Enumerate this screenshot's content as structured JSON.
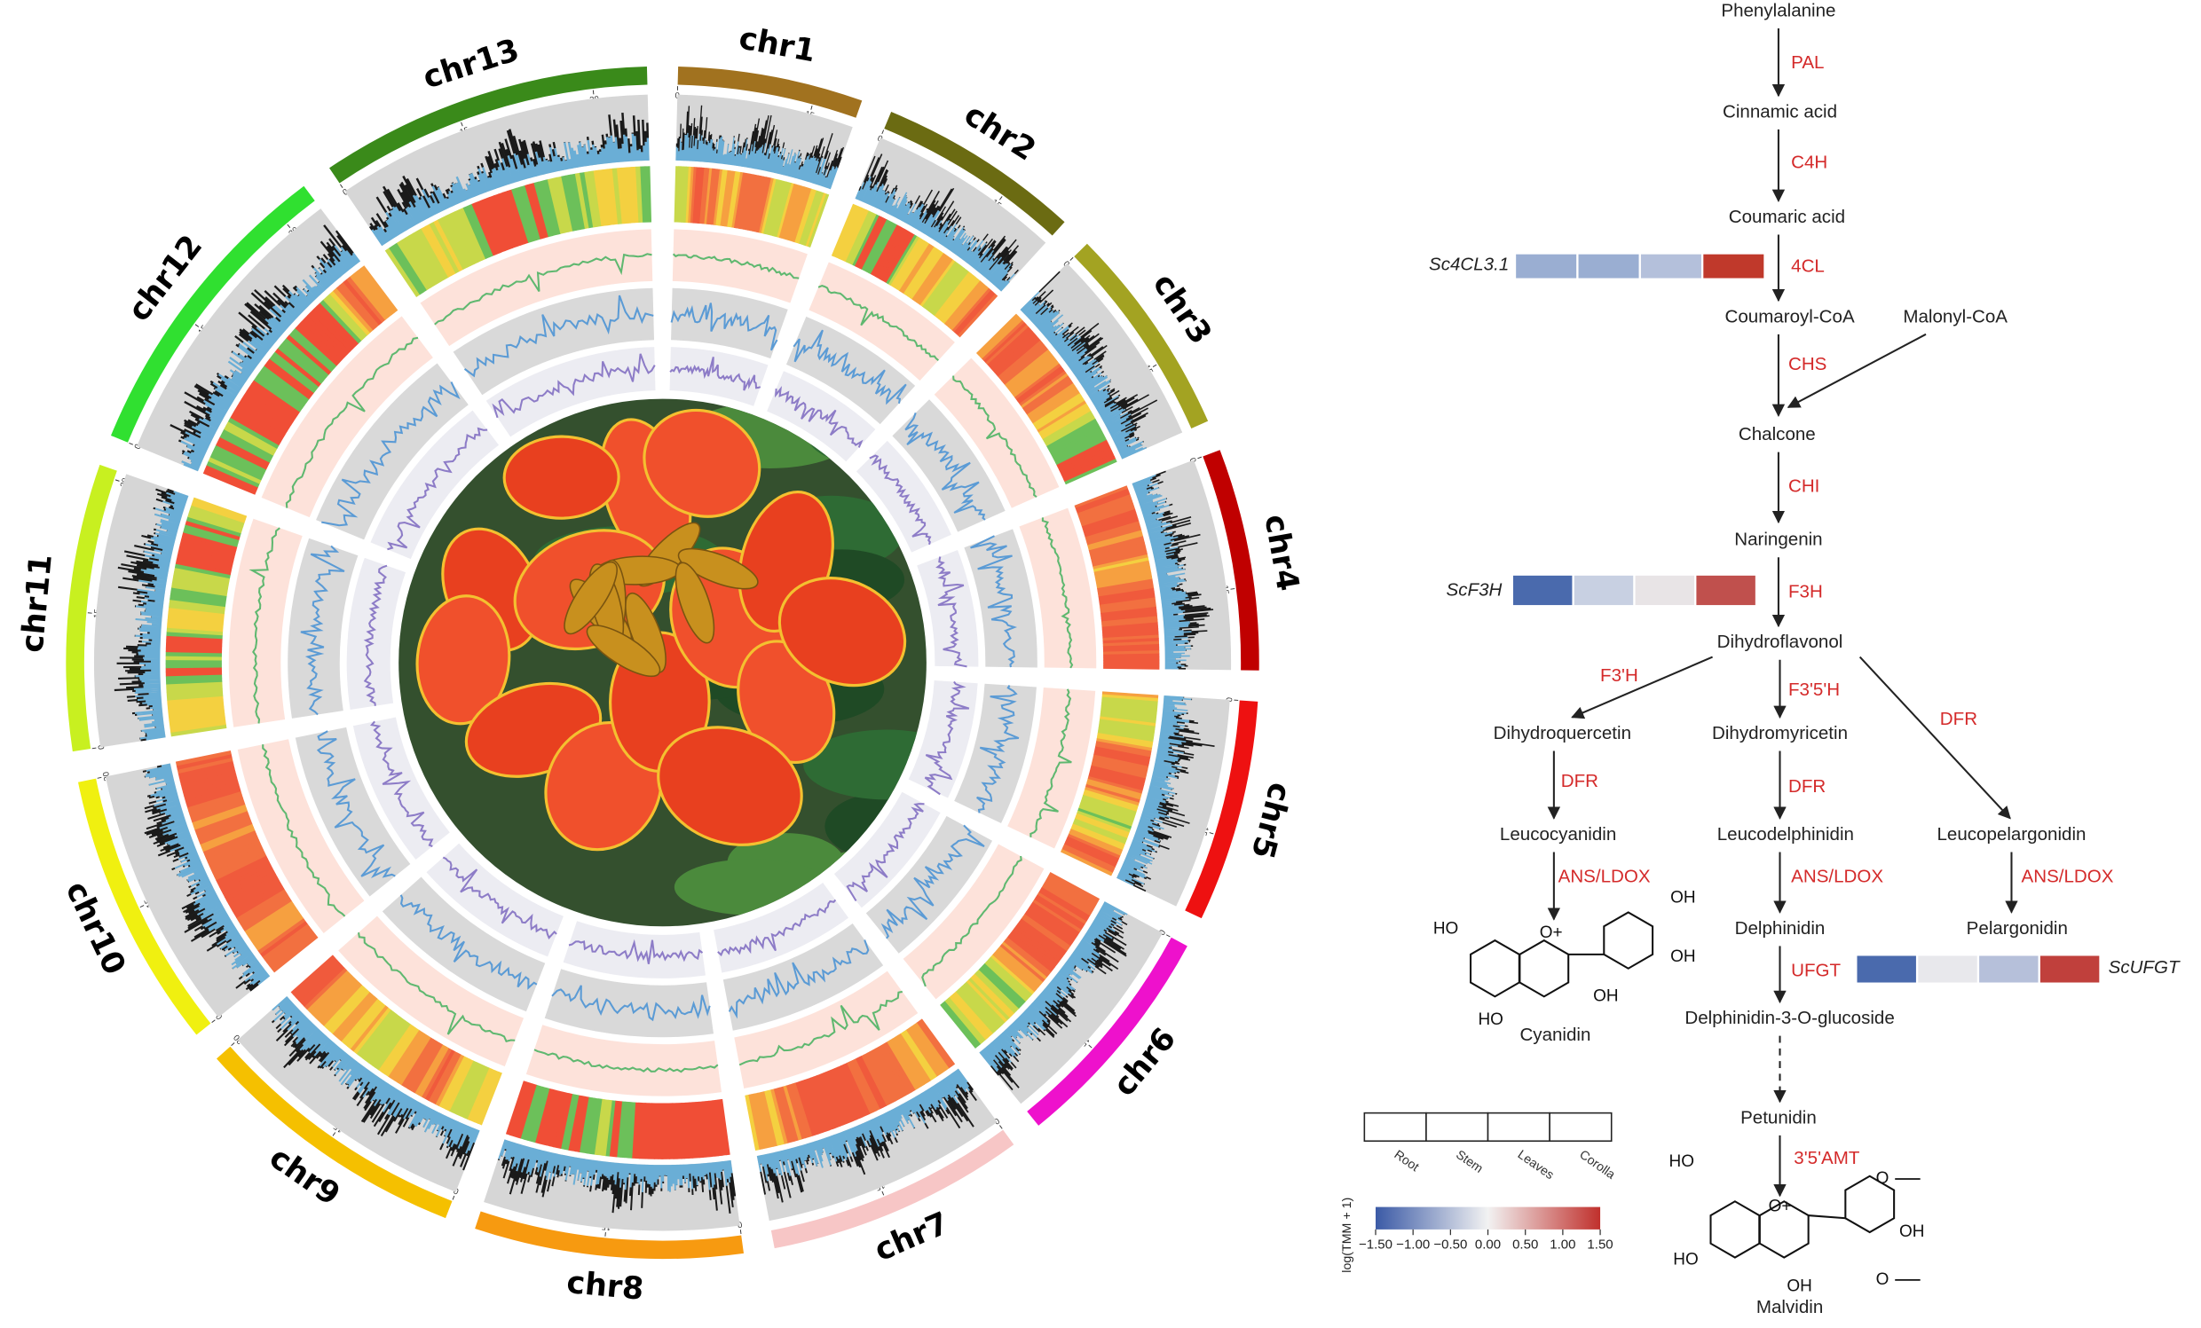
{
  "circos": {
    "chromosomes": [
      {
        "name": "chr1",
        "length": 20,
        "color": "#a1721f",
        "ticks": [
          0,
          15
        ]
      },
      {
        "name": "chr2",
        "length": 22,
        "color": "#6b6b12",
        "ticks": [
          0,
          15
        ]
      },
      {
        "name": "chr3",
        "length": 23,
        "color": "#a3a322",
        "ticks": [
          0,
          15
        ]
      },
      {
        "name": "chr4",
        "length": 24,
        "color": "#c00000",
        "ticks": [
          0,
          15
        ]
      },
      {
        "name": "chr5",
        "length": 24,
        "color": "#ee1111",
        "ticks": [
          0,
          15
        ]
      },
      {
        "name": "chr6",
        "length": 25,
        "color": "#ee11cc",
        "ticks": [
          0,
          15
        ]
      },
      {
        "name": "chr7",
        "length": 28,
        "color": "#f7c6c6",
        "ticks": [
          0,
          15
        ]
      },
      {
        "name": "chr8",
        "length": 29,
        "color": "#f79a10",
        "ticks": [
          0,
          15
        ]
      },
      {
        "name": "chr9",
        "length": 30,
        "color": "#f5c000",
        "ticks": [
          0,
          15,
          30
        ]
      },
      {
        "name": "chr10",
        "length": 30,
        "color": "#f0f010",
        "ticks": [
          0,
          15,
          30
        ]
      },
      {
        "name": "chr11",
        "length": 31,
        "color": "#c8f020",
        "ticks": [
          0,
          15,
          30
        ]
      },
      {
        "name": "chr12",
        "length": 34,
        "color": "#30e030",
        "ticks": [
          0,
          15,
          30
        ]
      },
      {
        "name": "chr13",
        "length": 36,
        "color": "#3a8a1a",
        "ticks": [
          0,
          15,
          30
        ]
      }
    ]
  },
  "pathway": {
    "compounds": [
      "Phenylalanine",
      "Cinnamic acid",
      "Coumaric acid",
      "Coumaroyl-CoA",
      "Malonyl-CoA",
      "Chalcone",
      "Naringenin",
      "Dihydroflavonol",
      "Dihydroquercetin",
      "Dihydromyricetin",
      "Leucopelargonidin",
      "Leucocyanidin",
      "Leucodelphinidin",
      "Delphinidin",
      "Pelargonidin",
      "Delphinidin-3-O-glucoside",
      "Cyanidin",
      "Petunidin",
      "Malvidin"
    ],
    "enzymes": [
      {
        "name": "PAL",
        "color": "#d42a2a"
      },
      {
        "name": "C4H",
        "color": "#d42a2a"
      },
      {
        "name": "4CL",
        "color": "#d42a2a"
      },
      {
        "name": "CHS",
        "color": "#d42a2a"
      },
      {
        "name": "CHI",
        "color": "#d42a2a"
      },
      {
        "name": "F3H",
        "color": "#d42a2a"
      },
      {
        "name": "F3'H",
        "color": "#d42a2a"
      },
      {
        "name": "F3'5'H",
        "color": "#222222"
      },
      {
        "name": "DFR",
        "color": "#d42a2a"
      },
      {
        "name": "DFR",
        "color": "#d42a2a"
      },
      {
        "name": "DFR",
        "color": "#d42a2a"
      },
      {
        "name": "ANS/LDOX",
        "color": "#d42a2a"
      },
      {
        "name": "ANS/LDOX",
        "color": "#d42a2a"
      },
      {
        "name": "ANS/LDOX",
        "color": "#d42a2a"
      },
      {
        "name": "UFGT",
        "color": "#d42a2a"
      },
      {
        "name": "3'5'AMT",
        "color": "#222222"
      }
    ],
    "genes": [
      {
        "name": "Sc4CL3.1",
        "colors": [
          "#9aaed2",
          "#9aaed2",
          "#b4c0db",
          "#c0392b"
        ]
      },
      {
        "name": "ScF3H",
        "colors": [
          "#4a6aad",
          "#c8d0e2",
          "#e8e4e6",
          "#c0504d"
        ]
      },
      {
        "name": "ScUFGT",
        "colors": [
          "#4a6aad",
          "#e8e8ec",
          "#b6c0da",
          "#c0403c"
        ]
      }
    ],
    "structures": {
      "cyanidin": [
        "HO",
        "O+",
        "OH",
        "OH",
        "OH",
        "HO"
      ],
      "malvidin": [
        "HO",
        "O+",
        "O",
        "OH",
        "O",
        "HO",
        "OH"
      ]
    }
  },
  "legend": {
    "tissues": [
      "Root",
      "Stem",
      "Leaves",
      "Corolla"
    ],
    "scale_label": "log(TMM + 1)",
    "lim": [
      -1.5,
      1.5
    ],
    "ticks": [
      {
        "value": -1.5,
        "label": "−1.50"
      },
      {
        "value": -1,
        "label": "−1.00"
      },
      {
        "value": -0.5,
        "label": "−0.50"
      },
      {
        "value": 0,
        "label": "0.00"
      },
      {
        "value": 0.5,
        "label": "0.50"
      },
      {
        "value": 1,
        "label": "1.00"
      },
      {
        "value": 1.5,
        "label": "1.50"
      }
    ],
    "colors": [
      "#3b5aa6",
      "#f2f2f2",
      "#c0302c"
    ]
  }
}
